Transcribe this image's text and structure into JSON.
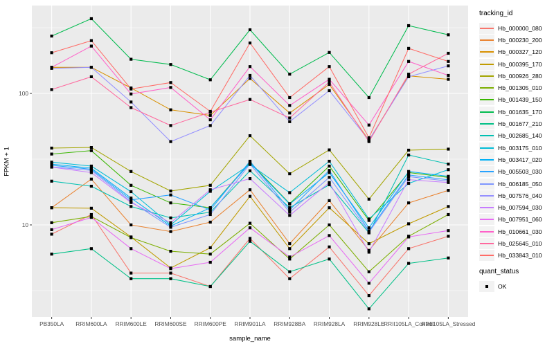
{
  "figure": {
    "panel_bg": "#EBEBEB",
    "grid_color": "#FFFFFF",
    "tick_color": "#333333",
    "point_color": "#000000",
    "axis_text_color": "#4D4D4D"
  },
  "chart_data": {
    "type": "line",
    "xlabel": "sample_name",
    "ylabel": "FPKM + 1",
    "y_scale": "log10",
    "y_ticks": [
      100,
      10
    ],
    "y_minor_ticks": [
      316.2,
      31.62,
      3.162
    ],
    "ylim": [
      2.0,
      466
    ],
    "grid": true,
    "legend_position": "right",
    "point_shape": "filled-square",
    "categories": [
      "PB350LA",
      "RRIM600LA",
      "RRIM600LE",
      "RRIM600SE",
      "RRIM600PE",
      "RRIM901LA",
      "RRIM928BA",
      "RRIM928LA",
      "RRIM928LE",
      "RRII105LA_Control",
      "RRII105LA_Stressed"
    ],
    "series": [
      {
        "tracking_id": "Hb_000000_080",
        "color": "#F8766D",
        "values": [
          8.5,
          12,
          4.3,
          4.3,
          3.4,
          7.9,
          3.9,
          6.8,
          2.9,
          6.6,
          8.2
        ]
      },
      {
        "tracking_id": "Hb_000230_200",
        "color": "#EA8331",
        "values": [
          13.5,
          22.3,
          10,
          8.9,
          10.5,
          18.5,
          7.2,
          15.3,
          6.4,
          14.7,
          18.3
        ]
      },
      {
        "tracking_id": "Hb_000327_120",
        "color": "#D89000",
        "values": [
          158,
          158,
          110,
          75,
          68,
          130,
          71,
          117,
          44,
          136,
          128
        ]
      },
      {
        "tracking_id": "Hb_000395_170",
        "color": "#C09B00",
        "values": [
          13.5,
          13.4,
          8.1,
          4.7,
          6.7,
          16.5,
          6.6,
          13.5,
          7.2,
          10.2,
          13.8
        ]
      },
      {
        "tracking_id": "Hb_000926_280",
        "color": "#A3A500",
        "values": [
          38.4,
          38.8,
          25.5,
          18.1,
          20,
          47.7,
          24.5,
          37.2,
          15.7,
          37,
          37.7
        ]
      },
      {
        "tracking_id": "Hb_001305_010",
        "color": "#7CAE00",
        "values": [
          10.4,
          11.6,
          8.0,
          6.3,
          6.0,
          10.3,
          5.5,
          10,
          4.4,
          8.2,
          12
        ]
      },
      {
        "tracking_id": "Hb_001439_150",
        "color": "#39B600",
        "values": [
          34.6,
          36.7,
          20,
          14.7,
          13.5,
          30,
          14.5,
          28,
          10.8,
          25,
          23
        ]
      },
      {
        "tracking_id": "Hb_001635_170",
        "color": "#00BB4E",
        "values": [
          273,
          370,
          182,
          166,
          127,
          305,
          140,
          205,
          93,
          328,
          279
        ]
      },
      {
        "tracking_id": "Hb_001677_210",
        "color": "#00C087",
        "values": [
          6.0,
          6.6,
          3.9,
          3.9,
          3.4,
          7.5,
          4.4,
          5.5,
          2.3,
          5.1,
          5.6
        ]
      },
      {
        "tracking_id": "Hb_002685_140",
        "color": "#00C0B2",
        "values": [
          21.5,
          19.7,
          13.8,
          11.3,
          12.5,
          25.8,
          13.5,
          20.2,
          8.7,
          34,
          29
        ]
      },
      {
        "tracking_id": "Hb_003175_010",
        "color": "#00BCD6",
        "values": [
          30,
          28,
          17.9,
          10,
          18,
          28.8,
          17.6,
          30.5,
          11.1,
          20.7,
          26.3
        ]
      },
      {
        "tracking_id": "Hb_003417_020",
        "color": "#00B0F6",
        "values": [
          29,
          27,
          16,
          9.8,
          13.5,
          29.5,
          14.4,
          25,
          9.5,
          25.5,
          23.4
        ]
      },
      {
        "tracking_id": "Hb_005503_030",
        "color": "#29A3FF",
        "values": [
          28.4,
          26.5,
          15.5,
          16.9,
          13,
          30.5,
          13,
          26,
          9,
          24,
          22
        ]
      },
      {
        "tracking_id": "Hb_006185_050",
        "color": "#7E96FF",
        "values": [
          27.6,
          26,
          15,
          9.6,
          12,
          29,
          12.5,
          23,
          8.8,
          23.3,
          21.5
        ]
      },
      {
        "tracking_id": "Hb_007576_040",
        "color": "#9590FF",
        "values": [
          155,
          158,
          86,
          43,
          57,
          137,
          61,
          105,
          44,
          134,
          162
        ]
      },
      {
        "tracking_id": "Hb_007594_030",
        "color": "#C77CFF",
        "values": [
          27.5,
          25,
          14.8,
          10.4,
          18.5,
          22.5,
          11.8,
          21,
          6.2,
          22.1,
          21
        ]
      },
      {
        "tracking_id": "Hb_007951_060",
        "color": "#E76BF3",
        "values": [
          9.2,
          11.4,
          6.6,
          4.65,
          5.2,
          9.5,
          5.7,
          8.3,
          3.6,
          8.1,
          9.05
        ]
      },
      {
        "tracking_id": "Hb_010661_030",
        "color": "#FF61C9",
        "values": [
          158,
          229,
          99,
          111,
          63,
          160,
          81,
          128,
          57.5,
          175,
          137
        ]
      },
      {
        "tracking_id": "Hb_025645_010",
        "color": "#FF689E",
        "values": [
          107,
          134,
          78,
          57,
          72,
          90,
          65,
          122,
          43,
          140,
          202
        ]
      },
      {
        "tracking_id": "Hb_033843_010",
        "color": "#FF6C67",
        "values": [
          204,
          252,
          108,
          121,
          73,
          242,
          93,
          160,
          46,
          220,
          175
        ]
      }
    ]
  },
  "legend": {
    "tracking_title": "tracking_id",
    "quant_title": "quant_status",
    "quant_ok_label": "OK"
  }
}
